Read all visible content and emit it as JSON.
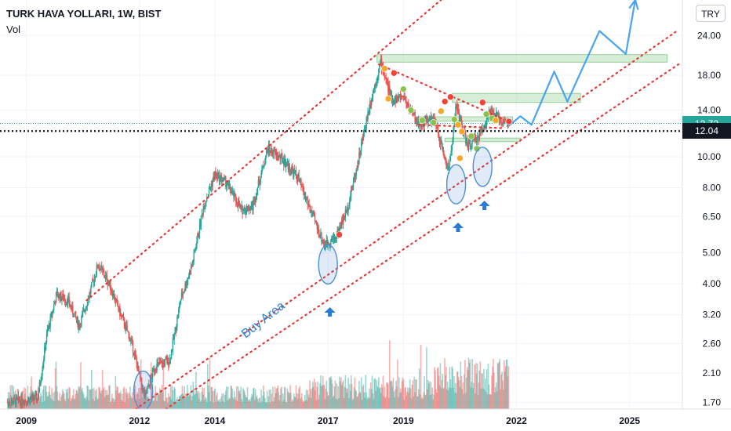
{
  "header": {
    "symbol": "TURK HAVA YOLLARI, 1W, BIST",
    "indicator": "Vol",
    "currency": "TRY"
  },
  "price_tags": [
    {
      "label": "12.72",
      "value": 12.72,
      "color": "#26a69a"
    },
    {
      "label": "12.04",
      "value": 12.04,
      "color": "#131722"
    }
  ],
  "annotations": {
    "buy_area": "Buy Area"
  },
  "colors": {
    "up": "#26a69a",
    "down": "#ef5350",
    "channel": "#e53935",
    "projection": "#4aa3ee",
    "zone": "#a5d6a7",
    "ellipse": "#4a90d9"
  },
  "chart_data": {
    "type": "candlestick",
    "title": "TURK HAVA YOLLARI, 1W, BIST",
    "xlabel": "",
    "ylabel": "",
    "scale": "log",
    "ylim": [
      1.62,
      31
    ],
    "xlim": [
      2008.3,
      2026.4
    ],
    "y_ticks": [
      "24.00",
      "18.00",
      "14.00",
      "10.00",
      "8.00",
      "6.50",
      "5.00",
      "4.00",
      "3.20",
      "2.60",
      "2.10",
      "1.70"
    ],
    "x_ticks": [
      "2009",
      "2012",
      "2014",
      "2017",
      "2019",
      "2022",
      "2025"
    ],
    "price_path": [
      [
        2008.5,
        1.7
      ],
      [
        2009.3,
        1.75
      ],
      [
        2009.55,
        2.8
      ],
      [
        2009.8,
        3.7
      ],
      [
        2010.1,
        3.55
      ],
      [
        2010.4,
        2.95
      ],
      [
        2010.7,
        3.8
      ],
      [
        2010.9,
        4.6
      ],
      [
        2011.2,
        4.0
      ],
      [
        2011.5,
        3.2
      ],
      [
        2011.8,
        2.6
      ],
      [
        2012.0,
        2.05
      ],
      [
        2012.15,
        1.75
      ],
      [
        2012.4,
        2.2
      ],
      [
        2012.8,
        2.3
      ],
      [
        2013.1,
        3.6
      ],
      [
        2013.4,
        4.6
      ],
      [
        2013.7,
        7.0
      ],
      [
        2014.0,
        8.8
      ],
      [
        2014.3,
        8.3
      ],
      [
        2014.7,
        6.8
      ],
      [
        2015.0,
        7.0
      ],
      [
        2015.4,
        10.6
      ],
      [
        2015.8,
        9.8
      ],
      [
        2016.2,
        8.6
      ],
      [
        2016.6,
        6.5
      ],
      [
        2016.9,
        5.3
      ],
      [
        2017.2,
        5.6
      ],
      [
        2017.5,
        6.8
      ],
      [
        2017.8,
        9.7
      ],
      [
        2018.1,
        14.5
      ],
      [
        2018.4,
        19.8
      ],
      [
        2018.7,
        15.0
      ],
      [
        2019.0,
        15.5
      ],
      [
        2019.4,
        12.6
      ],
      [
        2019.8,
        13.2
      ],
      [
        2020.2,
        9.0
      ],
      [
        2020.4,
        14.5
      ],
      [
        2020.7,
        10.8
      ],
      [
        2021.0,
        11.6
      ],
      [
        2021.3,
        13.8
      ],
      [
        2021.6,
        13.0
      ],
      [
        2021.8,
        12.7
      ]
    ],
    "volume_max": 3.5,
    "zones": [
      {
        "price_low": 19.8,
        "price_high": 20.9,
        "from": 2018.3,
        "to": 2026.0
      },
      {
        "price_low": 14.8,
        "price_high": 15.8,
        "from": 2020.3,
        "to": 2023.7
      },
      {
        "price_low": 12.95,
        "price_high": 13.35,
        "from": 2019.4,
        "to": 2021.9
      },
      {
        "price_low": 11.15,
        "price_high": 11.45,
        "from": 2020.1,
        "to": 2022.1
      }
    ],
    "channel_lines": [
      [
        [
          2010.6,
          3.55
        ],
        [
          2021.8,
          47
        ]
      ],
      [
        [
          2011.9,
          1.62
        ],
        [
          2026.3,
          25
        ]
      ],
      [
        [
          2012.7,
          1.62
        ],
        [
          2026.3,
          19.5
        ]
      ]
    ],
    "triangle_lines": [
      [
        [
          2018.35,
          19.5
        ],
        [
          2021.6,
          13.2
        ]
      ],
      [
        [
          2019.4,
          12.6
        ],
        [
          2021.6,
          12.3
        ]
      ]
    ],
    "projection": [
      [
        2021.8,
        12.5
      ],
      [
        2022.1,
        13.4
      ],
      [
        2022.4,
        12.6
      ],
      [
        2023.0,
        18.5
      ],
      [
        2023.35,
        14.9
      ],
      [
        2024.2,
        24.8
      ],
      [
        2024.9,
        21.0
      ],
      [
        2025.15,
        31
      ]
    ],
    "markers": [
      {
        "x": 2017.3,
        "y": 5.7,
        "color": "red"
      },
      {
        "x": 2018.5,
        "y": 18.9,
        "color": "orange"
      },
      {
        "x": 2018.75,
        "y": 18.3,
        "color": "red"
      },
      {
        "x": 2018.6,
        "y": 15.2,
        "color": "orange"
      },
      {
        "x": 2019.0,
        "y": 16.3,
        "color": "green"
      },
      {
        "x": 2019.2,
        "y": 14.0,
        "color": "green"
      },
      {
        "x": 2019.5,
        "y": 13.0,
        "color": "green"
      },
      {
        "x": 2019.8,
        "y": 12.8,
        "color": "green"
      },
      {
        "x": 2020.0,
        "y": 13.9,
        "color": "orange"
      },
      {
        "x": 2020.1,
        "y": 14.9,
        "color": "red"
      },
      {
        "x": 2020.25,
        "y": 15.4,
        "color": "red"
      },
      {
        "x": 2020.35,
        "y": 13.1,
        "color": "green"
      },
      {
        "x": 2020.45,
        "y": 12.6,
        "color": "orange"
      },
      {
        "x": 2020.55,
        "y": 12.0,
        "color": "orange"
      },
      {
        "x": 2020.5,
        "y": 9.9,
        "color": "orange"
      },
      {
        "x": 2020.8,
        "y": 11.6,
        "color": "green"
      },
      {
        "x": 2020.95,
        "y": 10.6,
        "color": "green"
      },
      {
        "x": 2021.2,
        "y": 13.6,
        "color": "green"
      },
      {
        "x": 2021.35,
        "y": 13.2,
        "color": "green"
      },
      {
        "x": 2021.45,
        "y": 13.0,
        "color": "orange"
      },
      {
        "x": 2021.8,
        "y": 12.9,
        "color": "red"
      },
      {
        "x": 2021.1,
        "y": 14.8,
        "color": "red"
      }
    ],
    "ellipses": [
      {
        "x": 2012.1,
        "y": 1.85
      },
      {
        "x": 2017.0,
        "y": 4.6
      },
      {
        "x": 2020.4,
        "y": 8.2
      },
      {
        "x": 2021.1,
        "y": 9.3
      }
    ],
    "arrows": [
      {
        "x": 2017.05
      },
      {
        "x": 2020.45
      },
      {
        "x": 2021.15
      }
    ]
  }
}
